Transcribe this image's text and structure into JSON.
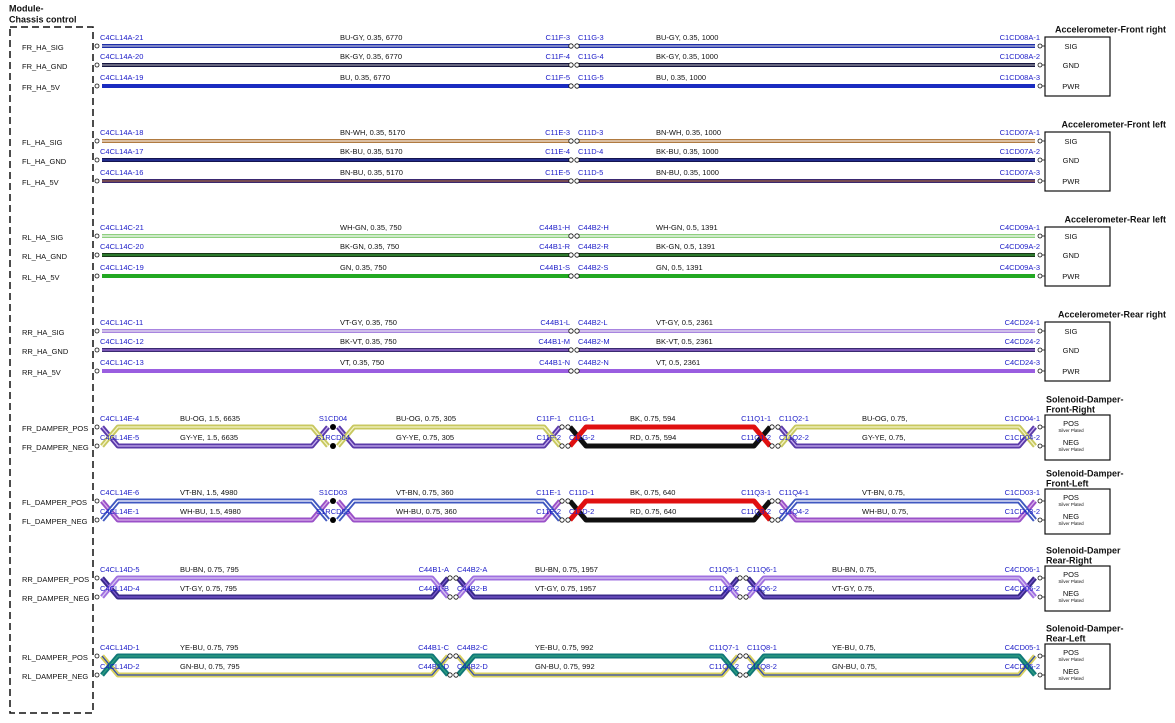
{
  "module": {
    "title": [
      "Module-",
      "Chassis control"
    ]
  },
  "groups": [
    {
      "title": [
        "Accelerometer-Front right"
      ],
      "twisted": false,
      "wires": [
        {
          "signal": "FR_HA_SIG",
          "left": "C4CL14A-21",
          "segments": [
            {
              "label": "BU-GY, 0.35, 6770",
              "color": "#1e2ea8",
              "stripe": "#b8bcd8"
            },
            {
              "label": "BU-GY, 0.35, 1000",
              "color": "#1e2ea8",
              "stripe": "#b8bcd8"
            }
          ],
          "joints": [
            [
              "C11F-3",
              "C11G-3"
            ]
          ],
          "right": "C1CD08A-1",
          "pin": "SIG"
        },
        {
          "signal": "FR_HA_GND",
          "left": "C4CL14A-20",
          "segments": [
            {
              "label": "BK-GY, 0.35, 6770",
              "color": "#151540",
              "stripe": "#9a9aa8"
            },
            {
              "label": "BK-GY, 0.35, 1000",
              "color": "#151540",
              "stripe": "#9a9aa8"
            }
          ],
          "joints": [
            [
              "C11F-4",
              "C11G-4"
            ]
          ],
          "right": "C1CD08A-2",
          "pin": "GND"
        },
        {
          "signal": "FR_HA_5V",
          "left": "C4CL14A-19",
          "segments": [
            {
              "label": "BU, 0.35, 6770",
              "color": "#1a2cc0",
              "stripe": "#1a2cc0"
            },
            {
              "label": "BU, 0.35, 1000",
              "color": "#1a2cc0",
              "stripe": "#1a2cc0"
            }
          ],
          "joints": [
            [
              "C11F-5",
              "C11G-5"
            ]
          ],
          "right": "C1CD08A-3",
          "pin": "PWR"
        }
      ]
    },
    {
      "title": [
        "Accelerometer-Front left"
      ],
      "twisted": false,
      "wires": [
        {
          "signal": "FL_HA_SIG",
          "left": "C4CL14A-18",
          "segments": [
            {
              "label": "BN-WH, 0.35, 5170",
              "color": "#b07a40",
              "stripe": "#f2e8dc"
            },
            {
              "label": "BN-WH, 0.35, 1000",
              "color": "#b07a40",
              "stripe": "#f2e8dc"
            }
          ],
          "joints": [
            [
              "C11E-3",
              "C11D-3"
            ]
          ],
          "right": "C1CD07A-1",
          "pin": "SIG"
        },
        {
          "signal": "FL_HA_GND",
          "left": "C4CL14A-17",
          "segments": [
            {
              "label": "BK-BU, 0.35, 5170",
              "color": "#141450",
              "stripe": "#2a3ab0"
            },
            {
              "label": "BK-BU, 0.35, 1000",
              "color": "#141450",
              "stripe": "#2a3ab0"
            }
          ],
          "joints": [
            [
              "C11E-4",
              "C11D-4"
            ]
          ],
          "right": "C1CD07A-2",
          "pin": "GND"
        },
        {
          "signal": "FL_HA_5V",
          "left": "C4CL14A-16",
          "segments": [
            {
              "label": "BN-BU, 0.35, 5170",
              "color": "#3a2870",
              "stripe": "#9a6040"
            },
            {
              "label": "BN-BU, 0.35, 1000",
              "color": "#3a2870",
              "stripe": "#9a6040"
            }
          ],
          "joints": [
            [
              "C11E-5",
              "C11D-5"
            ]
          ],
          "right": "C1CD07A-3",
          "pin": "PWR"
        }
      ]
    },
    {
      "title": [
        "Accelerometer-Rear left"
      ],
      "twisted": false,
      "wires": [
        {
          "signal": "RL_HA_SIG",
          "left": "C4CL14C-21",
          "segments": [
            {
              "label": "WH-GN, 0.35, 750",
              "color": "#8fcf80",
              "stripe": "#f4fbf2"
            },
            {
              "label": "WH-GN, 0.5, 1391",
              "color": "#8fcf80",
              "stripe": "#f4fbf2"
            }
          ],
          "joints": [
            [
              "C44B1-H",
              "C44B2-H"
            ]
          ],
          "right": "C4CD09A-1",
          "pin": "SIG"
        },
        {
          "signal": "RL_HA_GND",
          "left": "C4CL14C-20",
          "segments": [
            {
              "label": "BK-GN, 0.35, 750",
              "color": "#183818",
              "stripe": "#3aa03a"
            },
            {
              "label": "BK-GN, 0.5, 1391",
              "color": "#183818",
              "stripe": "#3aa03a"
            }
          ],
          "joints": [
            [
              "C44B1-R",
              "C44B2-R"
            ]
          ],
          "right": "C4CD09A-2",
          "pin": "GND"
        },
        {
          "signal": "RL_HA_5V",
          "left": "C4CL14C-19",
          "segments": [
            {
              "label": "GN, 0.35, 750",
              "color": "#22a822",
              "stripe": "#22a822"
            },
            {
              "label": "GN, 0.5, 1391",
              "color": "#22a822",
              "stripe": "#22a822"
            }
          ],
          "joints": [
            [
              "C44B1-S",
              "C44B2-S"
            ]
          ],
          "right": "C4CD09A-3",
          "pin": "PWR"
        }
      ]
    },
    {
      "title": [
        "Accelerometer-Rear right"
      ],
      "twisted": false,
      "wires": [
        {
          "signal": "RR_HA_SIG",
          "left": "C4CL14C-11",
          "segments": [
            {
              "label": "VT-GY, 0.35, 750",
              "color": "#a884e0",
              "stripe": "#e4e0ee"
            },
            {
              "label": "VT-GY, 0.5, 2361",
              "color": "#a884e0",
              "stripe": "#e4e0ee"
            }
          ],
          "joints": [
            [
              "C44B1-L",
              "C44B2-L"
            ]
          ],
          "right": "C4CD24-1",
          "pin": "SIG"
        },
        {
          "signal": "RR_HA_GND",
          "left": "C4CL14C-12",
          "segments": [
            {
              "label": "BK-VT, 0.35, 750",
              "color": "#3a2a70",
              "stripe": "#a070e0"
            },
            {
              "label": "BK-VT, 0.5, 2361",
              "color": "#3a2a70",
              "stripe": "#a070e0"
            }
          ],
          "joints": [
            [
              "C44B1-M",
              "C44B2-M"
            ]
          ],
          "right": "C4CD24-2",
          "pin": "GND"
        },
        {
          "signal": "RR_HA_5V",
          "left": "C4CL14C-13",
          "segments": [
            {
              "label": "VT, 0.35, 750",
              "color": "#9a5ee0",
              "stripe": "#9a5ee0"
            },
            {
              "label": "VT, 0.5, 2361",
              "color": "#9a5ee0",
              "stripe": "#9a5ee0"
            }
          ],
          "joints": [
            [
              "C44B1-N",
              "C44B2-N"
            ]
          ],
          "right": "C4CD24-3",
          "pin": "PWR"
        }
      ]
    },
    {
      "title": [
        "Solenoid-Damper-",
        "Front-Right"
      ],
      "twisted": true,
      "wires": [
        {
          "signal": "FR_DAMPER_POS",
          "left": "C4CL14E-4",
          "segments": [
            {
              "label": "BU-OG, 1.5, 6635",
              "color": "#5a3aa8",
              "stripe": "#c8b0f0"
            },
            {
              "label": "BU-OG, 0.75, 305",
              "color": "#5a3aa8",
              "stripe": "#c8b0f0"
            },
            {
              "label": "BK, 0.75, 594",
              "color": "#101010",
              "stripe": "#101010"
            },
            {
              "label": "BU-OG, 0.75,",
              "color": "#5a3aa8",
              "stripe": "#c8b0f0"
            }
          ],
          "joints": [
            [
              "S1CD04"
            ],
            [
              "C11F-1",
              "C11G-1"
            ],
            [
              "C11Q1-1",
              "C11Q2-1"
            ]
          ],
          "right": "C1CD04-1",
          "pin": "POS",
          "note": "Silver Plated"
        },
        {
          "signal": "FR_DAMPER_NEG",
          "left": "C4CL14E-5",
          "segments": [
            {
              "label": "GY-YE, 1.5, 6635",
              "color": "#c8c860",
              "stripe": "#f4f4c8"
            },
            {
              "label": "GY-YE, 0.75, 305",
              "color": "#c8c860",
              "stripe": "#f4f4c8"
            },
            {
              "label": "RD, 0.75, 594",
              "color": "#e01010",
              "stripe": "#e01010"
            },
            {
              "label": "GY-YE, 0.75,",
              "color": "#c8c860",
              "stripe": "#f4f4c8"
            }
          ],
          "joints": [
            [
              "S1RCD04"
            ],
            [
              "C11F-2",
              "C11G-2"
            ],
            [
              "C11Q1-2",
              "C11Q2-2"
            ]
          ],
          "right": "C1CD04-2",
          "pin": "NEG",
          "note": "Silver Plated"
        }
      ]
    },
    {
      "title": [
        "Solenoid-Damper-",
        "Front-Left"
      ],
      "twisted": true,
      "wires": [
        {
          "signal": "FL_DAMPER_POS",
          "left": "C4CL14E-6",
          "segments": [
            {
              "label": "VT-BN, 1.5, 4980",
              "color": "#9a50c8",
              "stripe": "#d8b0e8"
            },
            {
              "label": "VT-BN, 0.75, 360",
              "color": "#9a50c8",
              "stripe": "#d8b0e8"
            },
            {
              "label": "BK, 0.75, 640",
              "color": "#101010",
              "stripe": "#101010"
            },
            {
              "label": "VT-BN, 0.75,",
              "color": "#9a50c8",
              "stripe": "#d8b0e8"
            }
          ],
          "joints": [
            [
              "S1CD03"
            ],
            [
              "C11E-1",
              "C11D-1"
            ],
            [
              "C11Q3-1",
              "C11Q4-1"
            ]
          ],
          "right": "C1CD03-1",
          "pin": "POS",
          "note": "Silver Plated"
        },
        {
          "signal": "FL_DAMPER_NEG",
          "left": "C4CL14E-1",
          "segments": [
            {
              "label": "WH-BU, 1.5, 4980",
              "color": "#4058c0",
              "stripe": "#ffffff"
            },
            {
              "label": "WH-BU, 0.75, 360",
              "color": "#4058c0",
              "stripe": "#ffffff"
            },
            {
              "label": "RD, 0.75, 640",
              "color": "#e01010",
              "stripe": "#e01010"
            },
            {
              "label": "WH-BU, 0.75,",
              "color": "#4058c0",
              "stripe": "#ffffff"
            }
          ],
          "joints": [
            [
              "S1RCD03"
            ],
            [
              "C11E-2",
              "C11D-2"
            ],
            [
              "C11Q3-2",
              "C11Q4-2"
            ]
          ],
          "right": "C1CD03-2",
          "pin": "NEG",
          "note": "Silver Plated"
        }
      ]
    },
    {
      "title": [
        "Solenoid-Damper",
        "Rear-Right"
      ],
      "twisted": true,
      "wires": [
        {
          "signal": "RR_DAMPER_POS",
          "left": "C4CL14D-5",
          "segments": [
            {
              "label": "BU-BN, 0.75, 795",
              "color": "#3a2a8a",
              "stripe": "#7a5ad0"
            },
            {
              "label": "BU-BN, 0.75, 1957",
              "color": "#3a2a8a",
              "stripe": "#7a5ad0"
            },
            {
              "label": "BU-BN, 0.75,",
              "color": "#3a2a8a",
              "stripe": "#7a5ad0"
            }
          ],
          "joints": [
            [
              "C44B1-A",
              "C44B2-A"
            ],
            [
              "C11Q5-1",
              "C11Q6-1"
            ]
          ],
          "right": "C4CD06-1",
          "pin": "POS",
          "note": "Silver Plated"
        },
        {
          "signal": "RR_DAMPER_NEG",
          "left": "C4CL14D-4",
          "segments": [
            {
              "label": "VT-GY, 0.75, 795",
              "color": "#a070e0",
              "stripe": "#d8c8f0"
            },
            {
              "label": "VT-GY, 0.75, 1957",
              "color": "#a070e0",
              "stripe": "#d8c8f0"
            },
            {
              "label": "VT-GY, 0.75,",
              "color": "#a070e0",
              "stripe": "#d8c8f0"
            }
          ],
          "joints": [
            [
              "C44B1-B",
              "C44B2-B"
            ],
            [
              "C11Q5-2",
              "C11Q6-2"
            ]
          ],
          "right": "C4CD06-2",
          "pin": "NEG",
          "note": "Silver Plated"
        }
      ]
    },
    {
      "title": [
        "Solenoid-Damper-",
        "Rear-Left"
      ],
      "twisted": true,
      "wires": [
        {
          "signal": "RL_DAMPER_POS",
          "left": "C4CL14D-1",
          "segments": [
            {
              "label": "YE-BU, 0.75, 795",
              "color": "#d8d060",
              "stripe": "#304ab0"
            },
            {
              "label": "YE-BU, 0.75, 992",
              "color": "#d8d060",
              "stripe": "#304ab0"
            },
            {
              "label": "YE-BU, 0.75,",
              "color": "#d8d060",
              "stripe": "#304ab0"
            }
          ],
          "joints": [
            [
              "C44B1-C",
              "C44B2-C"
            ],
            [
              "C11Q7-1",
              "C11Q8-1"
            ]
          ],
          "right": "C4CD05-1",
          "pin": "POS",
          "note": "Silver Plated"
        },
        {
          "signal": "RL_DAMPER_NEG",
          "left": "C4CL14D-2",
          "segments": [
            {
              "label": "GN-BU, 0.75, 795",
              "color": "#107878",
              "stripe": "#30a080"
            },
            {
              "label": "GN-BU, 0.75, 992",
              "color": "#107878",
              "stripe": "#30a080"
            },
            {
              "label": "GN-BU, 0.75,",
              "color": "#107878",
              "stripe": "#30a080"
            }
          ],
          "joints": [
            [
              "C44B1-D",
              "C44B2-D"
            ],
            [
              "C11Q7-2",
              "C11Q8-2"
            ]
          ],
          "right": "C4CD05-2",
          "pin": "NEG",
          "note": "Silver Plated"
        }
      ]
    }
  ]
}
